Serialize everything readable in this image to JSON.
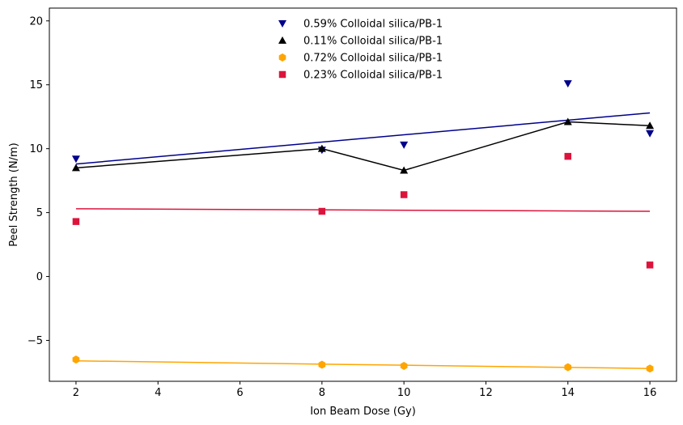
{
  "chart_data": {
    "type": "scatter",
    "title": "",
    "xlabel": "Ion Beam Dose (Gy)",
    "ylabel": "Peel Strength (N/m)",
    "xlim": [
      1.35,
      16.65
    ],
    "ylim": [
      -8.2,
      21
    ],
    "xticks": [
      2,
      4,
      6,
      8,
      10,
      12,
      14,
      16
    ],
    "xtick_labels": [
      "2",
      "4",
      "6",
      "8",
      "10",
      "12",
      "14",
      "16"
    ],
    "yticks": [
      -5,
      0,
      5,
      10,
      15,
      20
    ],
    "ytick_labels": [
      "−5",
      "0",
      "5",
      "10",
      "15",
      "20"
    ],
    "grid": false,
    "legend_position": "top-center",
    "series": [
      {
        "name": "0.59% Colloidal silica/PB-1",
        "marker": "triangle-down",
        "color": "#00008b",
        "x": [
          2,
          8,
          10,
          14,
          16
        ],
        "y": [
          9.2,
          9.9,
          10.3,
          15.1,
          11.2
        ],
        "line_style": "fit",
        "line_x": [
          2,
          16
        ],
        "line_y": [
          8.8,
          12.8
        ]
      },
      {
        "name": "0.11% Colloidal silica/PB-1",
        "marker": "triangle-up",
        "color": "#000000",
        "x": [
          2,
          8,
          10,
          14,
          16
        ],
        "y": [
          8.5,
          10.0,
          8.3,
          12.1,
          11.8
        ],
        "line_style": "connect",
        "line_x": [
          2,
          8,
          10,
          14,
          16
        ],
        "line_y": [
          8.5,
          10.0,
          8.3,
          12.1,
          11.8
        ]
      },
      {
        "name": "0.72% Colloidal silica/PB-1",
        "marker": "hexagon",
        "color": "#ffa500",
        "x": [
          2,
          8,
          10,
          14,
          16
        ],
        "y": [
          -6.5,
          -6.9,
          -7.0,
          -7.1,
          -7.2
        ],
        "line_style": "fit",
        "line_x": [
          2,
          16
        ],
        "line_y": [
          -6.6,
          -7.2
        ]
      },
      {
        "name": "0.23% Colloidal silica/PB-1",
        "marker": "square",
        "color": "#dc143c",
        "x": [
          2,
          8,
          10,
          14,
          16
        ],
        "y": [
          4.3,
          5.1,
          6.4,
          9.4,
          0.9
        ],
        "line_style": "fit",
        "line_x": [
          2,
          16
        ],
        "line_y": [
          5.3,
          5.1
        ]
      }
    ]
  }
}
